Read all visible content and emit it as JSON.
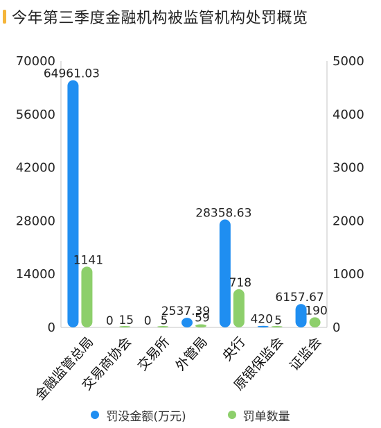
{
  "title": "今年第三季度金融机构被监管机构处罚概览",
  "colors": {
    "accent": "#f5b53a",
    "series1": "#1f8ef1",
    "series2": "#8dcf6b",
    "axis": "#d8d8d8"
  },
  "chart_data": {
    "type": "bar",
    "categories": [
      "金融监管总局",
      "交易商协会",
      "交易所",
      "外管局",
      "央行",
      "原银保监会",
      "证监会"
    ],
    "series": [
      {
        "name": "罚没金额(万元)",
        "axis": "left",
        "values": [
          64961.03,
          0,
          0,
          2537.39,
          28358.63,
          420,
          6157.67
        ],
        "labels": [
          "64961.03",
          "0",
          "0",
          "2537.39",
          "28358.63",
          "420",
          "6157.67"
        ]
      },
      {
        "name": "罚单数量",
        "axis": "right",
        "values": [
          1141,
          15,
          5,
          59,
          718,
          5,
          190
        ],
        "labels": [
          "1141",
          "15",
          "5",
          "59",
          "718",
          "5",
          "190"
        ]
      }
    ],
    "y_left": {
      "ylim": [
        0,
        70000
      ],
      "ticks": [
        "0",
        "14000",
        "28000",
        "42000",
        "56000",
        "70000"
      ]
    },
    "y_right": {
      "ylim": [
        0,
        5000
      ],
      "ticks": [
        "0",
        "1000",
        "2000",
        "3000",
        "4000",
        "5000"
      ]
    },
    "grid": false,
    "legend_position": "bottom"
  }
}
